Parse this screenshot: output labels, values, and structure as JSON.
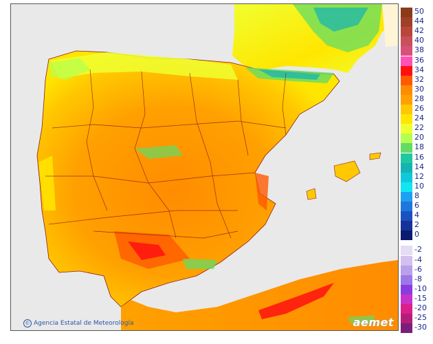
{
  "map": {
    "credit": "Agencia Estatal de Meteorología",
    "logo": "aemet",
    "sea_color": "#e9e9e9",
    "border_color": "#8b1a1a"
  },
  "legend": {
    "positive": [
      {
        "label": "50",
        "color": "#8b3a1a"
      },
      {
        "label": "44",
        "color": "#a0402a"
      },
      {
        "label": "42",
        "color": "#b8473a"
      },
      {
        "label": "40",
        "color": "#c9505a"
      },
      {
        "label": "38",
        "color": "#d8507a"
      },
      {
        "label": "36",
        "color": "#ff50b4"
      },
      {
        "label": "34",
        "color": "#ff1010"
      },
      {
        "label": "32",
        "color": "#ff5a00"
      },
      {
        "label": "30",
        "color": "#ff8c00"
      },
      {
        "label": "28",
        "color": "#ffa000"
      },
      {
        "label": "26",
        "color": "#ffc800"
      },
      {
        "label": "24",
        "color": "#ffe600"
      },
      {
        "label": "22",
        "color": "#f0ff30"
      },
      {
        "label": "20",
        "color": "#b4ff50"
      },
      {
        "label": "18",
        "color": "#64dc64"
      },
      {
        "label": "16",
        "color": "#20c8a0"
      },
      {
        "label": "14",
        "color": "#14b4b4"
      },
      {
        "label": "12",
        "color": "#10c8dc"
      },
      {
        "label": "10",
        "color": "#10e6f0"
      },
      {
        "label": "8",
        "color": "#1ea0f0"
      },
      {
        "label": "6",
        "color": "#1e78dc"
      },
      {
        "label": "4",
        "color": "#1a50c0"
      },
      {
        "label": "2",
        "color": "#14329a"
      },
      {
        "label": "0",
        "color": "#0a1a6e"
      }
    ],
    "negative": [
      {
        "label": "-2",
        "color": "#e6dcf5"
      },
      {
        "label": "-4",
        "color": "#d2c0f0"
      },
      {
        "label": "-6",
        "color": "#b9a0ec"
      },
      {
        "label": "-8",
        "color": "#9c78e6"
      },
      {
        "label": "-10",
        "color": "#8a3ce0"
      },
      {
        "label": "-15",
        "color": "#c832c8"
      },
      {
        "label": "-20",
        "color": "#dc1e8c"
      },
      {
        "label": "-25",
        "color": "#b41e78"
      },
      {
        "label": "-30",
        "color": "#7a1e7a"
      }
    ]
  }
}
